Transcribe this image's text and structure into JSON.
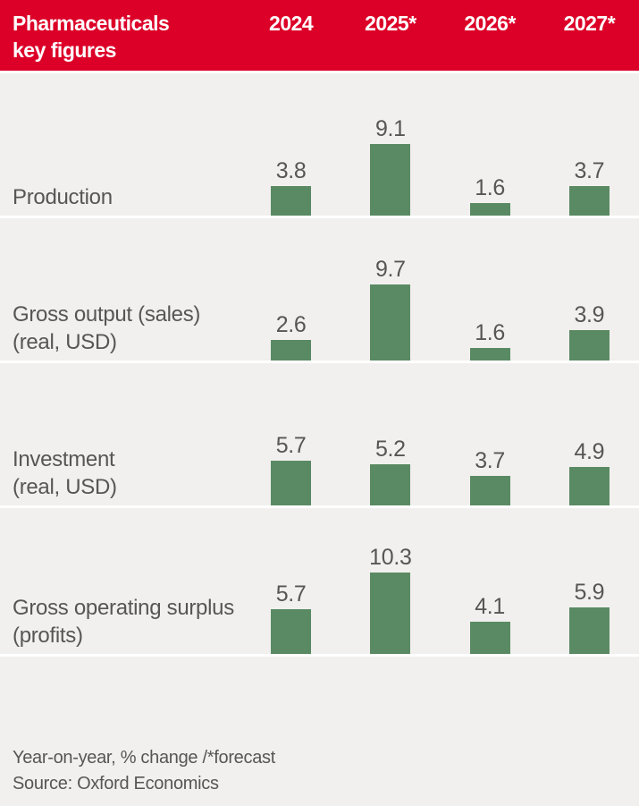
{
  "header": {
    "title_lines": [
      "Pharmaceuticals",
      "key figures"
    ]
  },
  "chart_data": {
    "type": "bar",
    "title": "Pharmaceuticals key figures",
    "categories": [
      "2024",
      "2025*",
      "2026*",
      "2027*"
    ],
    "series": [
      {
        "name": "Production",
        "label_lines": [
          "Production"
        ],
        "values": [
          3.8,
          9.1,
          1.6,
          3.7
        ]
      },
      {
        "name": "Gross output (sales) (real, USD)",
        "label_lines": [
          "Gross output (sales)",
          "(real, USD)"
        ],
        "values": [
          2.6,
          9.7,
          1.6,
          3.9
        ]
      },
      {
        "name": "Investment (real, USD)",
        "label_lines": [
          "Investment",
          "(real, USD)"
        ],
        "values": [
          5.7,
          5.2,
          3.7,
          4.9
        ]
      },
      {
        "name": "Gross operating surplus (profits)",
        "label_lines": [
          "Gross operating surplus",
          "(profits)"
        ],
        "values": [
          5.7,
          10.3,
          4.1,
          5.9
        ]
      }
    ],
    "ylim": [
      0,
      11
    ],
    "value_labels": true,
    "grid": false,
    "legend": false,
    "unit_note": "Year-on-year, % change /*forecast"
  },
  "footer": {
    "note": "Year-on-year, % change /*forecast",
    "source": "Source: Oxford Economics"
  },
  "colors": {
    "brand_red": "#dc0028",
    "bar_green": "#5a8a63",
    "background": "#f1f0ee",
    "text_gray": "#575655",
    "header_text": "#ffffff"
  }
}
